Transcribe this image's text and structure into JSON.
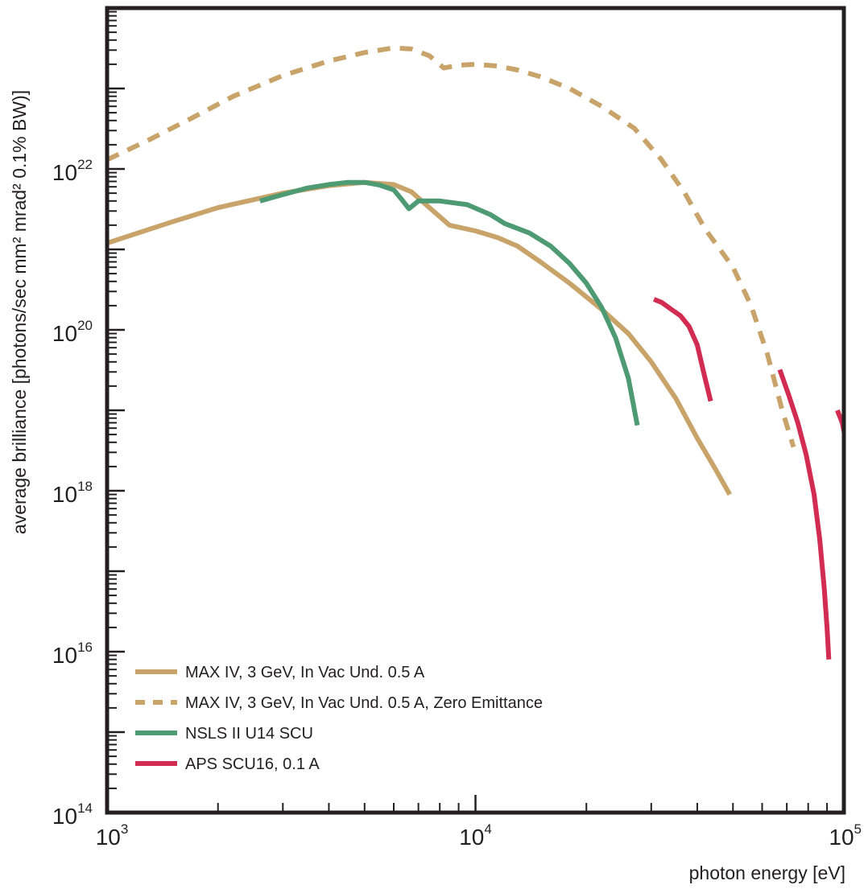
{
  "chart_data": {
    "type": "line",
    "xlabel": "photon energy [eV]",
    "ylabel": "average brilliance [photons/sec mm² mrad² 0.1% BW)]",
    "xscale": "log",
    "yscale": "log",
    "xlim": [
      1000,
      100000
    ],
    "ylim": [
      100000000000000.0,
      1e+24
    ],
    "x_ticks": [
      {
        "value": 1000,
        "base": "10",
        "exp": "3"
      },
      {
        "value": 10000,
        "base": "10",
        "exp": "4"
      },
      {
        "value": 100000,
        "base": "10",
        "exp": "5"
      }
    ],
    "y_ticks": [
      {
        "value": 100000000000000.0,
        "base": "10",
        "exp": "14"
      },
      {
        "value": 1e+16,
        "base": "10",
        "exp": "16"
      },
      {
        "value": 1e+18,
        "base": "10",
        "exp": "18"
      },
      {
        "value": 1e+20,
        "base": "10",
        "exp": "20"
      },
      {
        "value": 1e+22,
        "base": "10",
        "exp": "22"
      }
    ],
    "grid": false,
    "legend_position": "bottom-left",
    "series": [
      {
        "name": "MAX IV, 3 GeV, In Vac Und. 0.5 A",
        "color": "#c9a46a",
        "style": "solid",
        "x": [
          1000,
          1500,
          2000,
          3000,
          4000,
          5000,
          6000,
          6700,
          7500,
          8500,
          10000,
          11500,
          13000,
          15000,
          18000,
          22000,
          26000,
          30000,
          35000,
          40000,
          45000,
          49000
        ],
        "y": [
          1.2e+21,
          2.2e+21,
          3.3e+21,
          5e+21,
          6.2e+21,
          6.8e+21,
          6.4e+21,
          5.2e+21,
          3.3e+21,
          2e+21,
          1.7e+21,
          1.4e+21,
          1.1e+21,
          7e+20,
          3.8e+20,
          1.8e+20,
          9e+19,
          4e+19,
          1.4e+19,
          4.5e+18,
          1.8e+18,
          9e+17
        ]
      },
      {
        "name": "MAX IV, 3 GeV, In Vac Und. 0.5 A, Zero Emittance",
        "color": "#c9a46a",
        "style": "dashed",
        "x": [
          1000,
          1300,
          1700,
          2200,
          3000,
          4000,
          5000,
          6000,
          6700,
          7500,
          8200,
          9000,
          10000,
          11500,
          13000,
          15000,
          18000,
          22000,
          27000,
          32000,
          37000,
          42000,
          50000,
          56000,
          62000,
          68000,
          73000
        ],
        "y": [
          1.3e+22,
          2.3e+22,
          4.3e+22,
          8e+22,
          1.45e+23,
          2.2e+23,
          2.8e+23,
          3.2e+23,
          3.1e+23,
          2.55e+23,
          1.8e+23,
          1.95e+23,
          2e+23,
          1.9e+23,
          1.7e+23,
          1.4e+23,
          1e+23,
          6e+22,
          3.2e+22,
          1.3e+22,
          5e+21,
          1.8e+21,
          6e+20,
          2e+20,
          5e+19,
          1e+19,
          3.5e+18
        ]
      },
      {
        "name": "NSLS II U14 SCU",
        "color": "#4d9a73",
        "style": "solid",
        "x": [
          2600,
          3000,
          3500,
          4000,
          4500,
          5000,
          5500,
          6000,
          6300,
          6600,
          7000,
          8000,
          9500,
          11000,
          12000,
          14000,
          16000,
          18000,
          20000,
          22000,
          24000,
          26000,
          27500
        ],
        "y": [
          4e+21,
          4.8e+21,
          5.8e+21,
          6.4e+21,
          6.8e+21,
          6.8e+21,
          6.3e+21,
          5.5e+21,
          4.2e+21,
          3.2e+21,
          4e+21,
          4e+21,
          3.6e+21,
          2.7e+21,
          2.1e+21,
          1.6e+21,
          1.1e+21,
          6.7e+20,
          3.8e+20,
          1.9e+20,
          8e+19,
          2.5e+19,
          6.5e+18
        ]
      },
      {
        "name": "APS SCU16, 0.1 A",
        "color": "#d22c52",
        "style": "solid",
        "x": [
          30500,
          32000,
          34000,
          36000,
          38000,
          40000,
          42000,
          43500,
          null,
          67000,
          71000,
          75000,
          79000,
          83000,
          86000,
          88500,
          90000,
          91000,
          null,
          96000,
          99000,
          101500,
          103500
        ],
        "y": [
          2.4e+20,
          2.2e+20,
          1.8e+20,
          1.5e+20,
          1.1e+20,
          6.5e+19,
          2.5e+19,
          1.3e+19,
          null,
          3.2e+19,
          1.5e+19,
          7e+18,
          2.8e+18,
          9e+17,
          2.5e+17,
          6e+16,
          2e+16,
          8000000000000000.0,
          null,
          1e+19,
          7e+18,
          4e+18,
          1.8e+18
        ]
      }
    ]
  }
}
